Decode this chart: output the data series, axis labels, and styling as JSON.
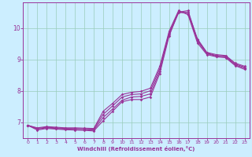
{
  "xlabel": "Windchill (Refroidissement éolien,°C)",
  "bg_color": "#cceeff",
  "line_color": "#993399",
  "grid_color": "#99ccbb",
  "xlim": [
    -0.5,
    23.5
  ],
  "ylim": [
    6.5,
    10.8
  ],
  "yticks": [
    7,
    8,
    9,
    10
  ],
  "xticks": [
    0,
    1,
    2,
    3,
    4,
    5,
    6,
    7,
    8,
    9,
    10,
    11,
    12,
    13,
    14,
    15,
    16,
    17,
    18,
    19,
    20,
    21,
    22,
    23
  ],
  "curve1_x": [
    0,
    1,
    2,
    3,
    4,
    5,
    6,
    7,
    8,
    9,
    10,
    11,
    12,
    13,
    14,
    15,
    16,
    17,
    18,
    19,
    20,
    21,
    22,
    23
  ],
  "curve1_y": [
    6.9,
    6.75,
    6.8,
    6.78,
    6.76,
    6.75,
    6.74,
    6.72,
    7.05,
    7.35,
    7.65,
    7.72,
    7.72,
    7.8,
    8.55,
    9.75,
    10.5,
    10.55,
    9.62,
    9.2,
    9.12,
    9.1,
    8.85,
    8.75
  ],
  "curve2_x": [
    0,
    1,
    2,
    3,
    4,
    5,
    6,
    7,
    8,
    9,
    10,
    11,
    12,
    13,
    14,
    15,
    16,
    17,
    18,
    19,
    20,
    21,
    22,
    23
  ],
  "curve2_y": [
    6.9,
    6.78,
    6.82,
    6.8,
    6.78,
    6.77,
    6.76,
    6.75,
    7.15,
    7.42,
    7.7,
    7.8,
    7.82,
    7.9,
    8.62,
    9.8,
    10.48,
    10.5,
    9.65,
    9.22,
    9.15,
    9.12,
    8.88,
    8.78
  ],
  "curve3_x": [
    0,
    1,
    2,
    3,
    4,
    5,
    6,
    7,
    8,
    9,
    10,
    11,
    12,
    13,
    14,
    15,
    16,
    17,
    18,
    19,
    20,
    21,
    22,
    23
  ],
  "curve3_y": [
    6.9,
    6.8,
    6.84,
    6.82,
    6.8,
    6.8,
    6.79,
    6.78,
    7.25,
    7.52,
    7.8,
    7.88,
    7.9,
    8.0,
    8.7,
    9.85,
    10.52,
    10.45,
    9.58,
    9.18,
    9.1,
    9.08,
    8.82,
    8.72
  ],
  "curve4_x": [
    0,
    1,
    2,
    3,
    4,
    5,
    6,
    7,
    8,
    9,
    10,
    11,
    12,
    13,
    14,
    15,
    16,
    17,
    18,
    19,
    20,
    21,
    22,
    23
  ],
  "curve4_y": [
    6.9,
    6.82,
    6.86,
    6.84,
    6.82,
    6.82,
    6.81,
    6.8,
    7.35,
    7.6,
    7.88,
    7.95,
    7.98,
    8.08,
    8.78,
    9.9,
    10.55,
    10.42,
    9.52,
    9.15,
    9.08,
    9.05,
    8.8,
    8.68
  ]
}
